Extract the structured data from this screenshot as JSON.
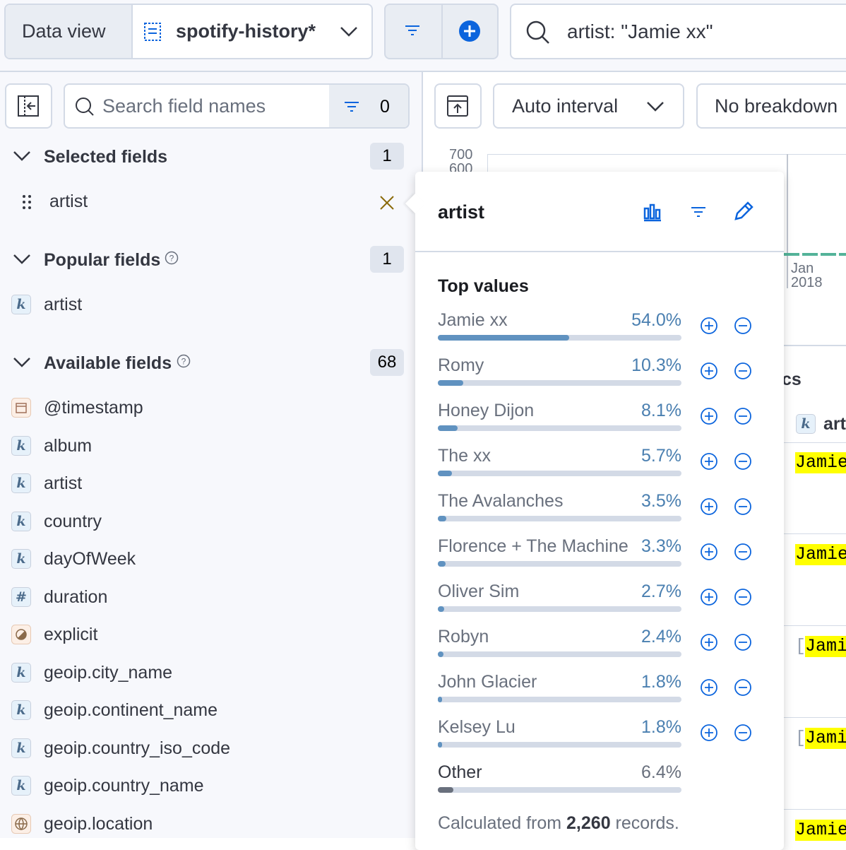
{
  "header": {
    "data_view_label": "Data view",
    "data_view": "spotify-history*",
    "query": "artist: \"Jamie xx\""
  },
  "sidebar": {
    "search_placeholder": "Search field names",
    "filter_count": "0",
    "selected": {
      "title": "Selected fields",
      "count": "1",
      "fields": [
        "artist"
      ]
    },
    "popular": {
      "title": "Popular fields",
      "count": "1",
      "fields": [
        {
          "icon": "k",
          "name": "artist"
        }
      ]
    },
    "available": {
      "title": "Available fields",
      "count": "68",
      "fields": [
        {
          "name": "@timestamp"
        },
        {
          "icon": "k",
          "name": "album"
        },
        {
          "icon": "k",
          "name": "artist"
        },
        {
          "icon": "k",
          "name": "country"
        },
        {
          "icon": "k",
          "name": "dayOfWeek"
        },
        {
          "icon": "#",
          "name": "duration"
        },
        {
          "name": "explicit"
        },
        {
          "icon": "k",
          "name": "geoip.city_name"
        },
        {
          "icon": "k",
          "name": "geoip.continent_name"
        },
        {
          "icon": "k",
          "name": "geoip.country_iso_code"
        },
        {
          "icon": "k",
          "name": "geoip.country_name"
        },
        {
          "name": "geoip.location"
        }
      ]
    }
  },
  "main": {
    "interval": "Auto interval",
    "breakdown": "No breakdown",
    "yticks": [
      "700",
      "600"
    ],
    "x_label": [
      "Jan",
      "2018"
    ],
    "section_title_fragment": "cs",
    "column_icon": "k",
    "column_fragment": "art",
    "cells": [
      "Jamie",
      "Jamie",
      "[",
      "Jami",
      "[",
      "Jami",
      "Jamie"
    ]
  },
  "popover": {
    "title": "artist",
    "section": "Top values",
    "top_values": [
      {
        "name": "Jamie xx",
        "value": 54.0,
        "label": "54.0%"
      },
      {
        "name": "Romy",
        "value": 10.3,
        "label": "10.3%"
      },
      {
        "name": "Honey Dijon",
        "value": 8.1,
        "label": "8.1%"
      },
      {
        "name": "The xx",
        "value": 5.7,
        "label": "5.7%"
      },
      {
        "name": "The Avalanches",
        "value": 3.5,
        "label": "3.5%"
      },
      {
        "name": "Florence + The Machine",
        "value": 3.3,
        "label": "3.3%"
      },
      {
        "name": "Oliver Sim",
        "value": 2.7,
        "label": "2.7%"
      },
      {
        "name": "Robyn",
        "value": 2.4,
        "label": "2.4%"
      },
      {
        "name": "John Glacier",
        "value": 1.8,
        "label": "1.8%"
      },
      {
        "name": "Kelsey Lu",
        "value": 1.8,
        "label": "1.8%"
      }
    ],
    "other": {
      "name": "Other",
      "value": 6.4,
      "label": "6.4%"
    },
    "footer": {
      "prefix": "Calculated from",
      "records": "2,260",
      "suffix": "records."
    }
  }
}
